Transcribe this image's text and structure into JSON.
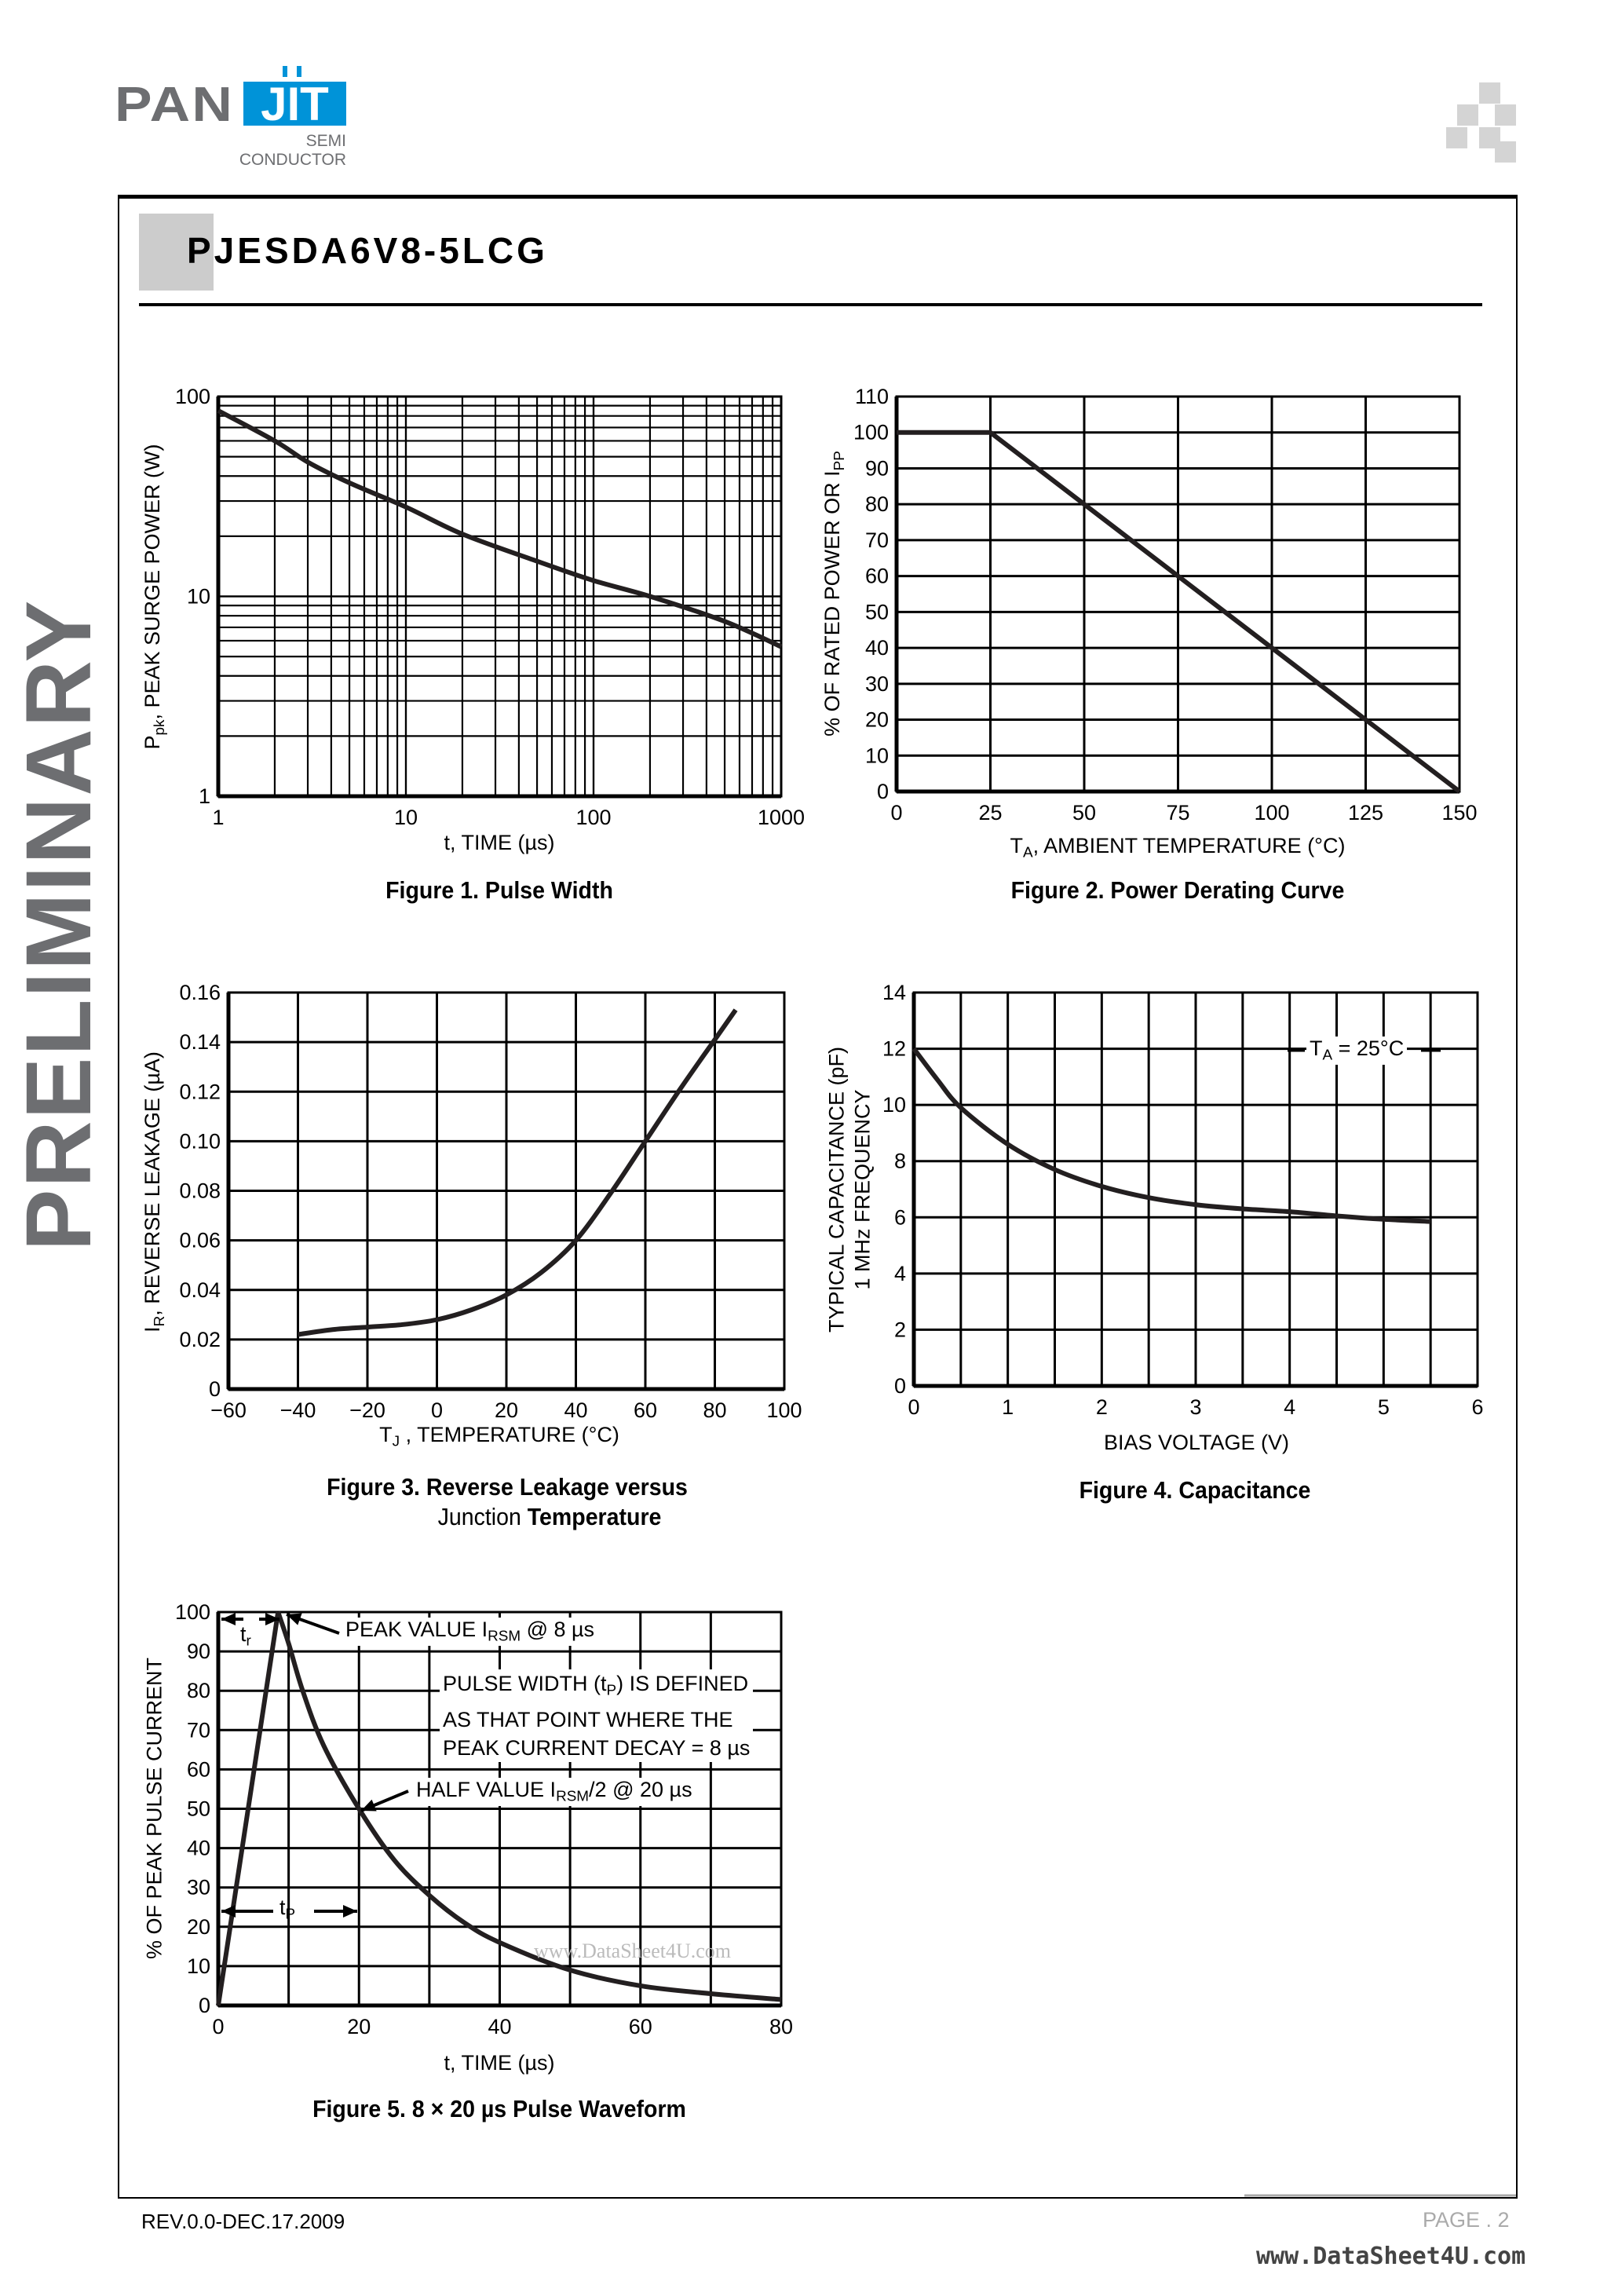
{
  "header": {
    "logo_text_gray": "PAN",
    "logo_text_blue": "JIT",
    "logo_sub_1": "SEMI",
    "logo_sub_2": "CONDUCTOR",
    "part_number": "PJESDA6V8-5LCG",
    "watermark": "PRELIMINARY"
  },
  "footer": {
    "revision": "REV.0.0-DEC.17.2009",
    "page": "PAGE . 2",
    "site_watermark": "www.DataSheet4U.com"
  },
  "colors": {
    "brand_blue": "#0093d8",
    "brand_gray": "#6d6e71",
    "title_block": "#cccccc",
    "ink": "#000000"
  },
  "chart_data": [
    {
      "type": "line",
      "title": "Figure 1. Pulse Width",
      "xlabel": "t, TIME (µs)",
      "ylabel": {
        "main": "P",
        "sub": "pk",
        "rest": ", PEAK SURGE POWER (W)"
      },
      "x_scale": "log",
      "y_scale": "log",
      "xlim": [
        1,
        1000
      ],
      "ylim": [
        1,
        100
      ],
      "x_ticks": [
        {
          "value": 1,
          "label": "1"
        },
        {
          "value": 10,
          "label": "10"
        },
        {
          "value": 100,
          "label": "100"
        },
        {
          "value": 1000,
          "label": "1000"
        }
      ],
      "y_ticks": [
        {
          "value": 1,
          "label": "1"
        },
        {
          "value": 10,
          "label": "10"
        },
        {
          "value": 100,
          "label": "100"
        }
      ],
      "grid": true,
      "series": [
        {
          "interpolation": "smooth",
          "x": [
            1,
            2,
            3,
            5,
            10,
            20,
            50,
            100,
            200,
            500,
            1000
          ],
          "y": [
            85,
            60,
            47,
            37,
            28,
            20.5,
            15,
            12,
            10,
            7.5,
            5.6
          ]
        }
      ]
    },
    {
      "type": "line",
      "title": "Figure 2. Power Derating Curve",
      "xlabel": {
        "main": "T",
        "sub": "A",
        "rest": ", AMBIENT TEMPERATURE (°C)"
      },
      "ylabel": {
        "main": "% OF RATED POWER OR I",
        "sub": "PP",
        "rest": ""
      },
      "x_scale": "linear",
      "y_scale": "linear",
      "xlim": [
        0,
        150
      ],
      "ylim": [
        0,
        110
      ],
      "x_grid_step": 25,
      "y_grid_step": 10,
      "x_ticks": [
        {
          "value": 0,
          "label": "0"
        },
        {
          "value": 25,
          "label": "25"
        },
        {
          "value": 50,
          "label": "50"
        },
        {
          "value": 75,
          "label": "75"
        },
        {
          "value": 100,
          "label": "100"
        },
        {
          "value": 125,
          "label": "125"
        },
        {
          "value": 150,
          "label": "150"
        }
      ],
      "y_ticks": [
        {
          "value": 0,
          "label": "0"
        },
        {
          "value": 10,
          "label": "10"
        },
        {
          "value": 20,
          "label": "20"
        },
        {
          "value": 30,
          "label": "30"
        },
        {
          "value": 40,
          "label": "40"
        },
        {
          "value": 50,
          "label": "50"
        },
        {
          "value": 60,
          "label": "60"
        },
        {
          "value": 70,
          "label": "70"
        },
        {
          "value": 80,
          "label": "80"
        },
        {
          "value": 90,
          "label": "90"
        },
        {
          "value": 100,
          "label": "100"
        },
        {
          "value": 110,
          "label": "110"
        }
      ],
      "grid": true,
      "series": [
        {
          "interpolation": "linear",
          "x": [
            0,
            25,
            150
          ],
          "y": [
            100,
            100,
            0
          ]
        }
      ]
    },
    {
      "type": "line",
      "title": "Figure 3. Reverse Leakage versus",
      "title_line2_light": "Junction",
      "title_line2_bold": "Temperature",
      "xlabel": {
        "main": "T",
        "sub": "J",
        "rest": " , TEMPERATURE (°C)"
      },
      "ylabel": {
        "main": "I",
        "sub": "R",
        "rest": ", REVERSE LEAKAGE (µA)"
      },
      "x_scale": "linear",
      "y_scale": "linear",
      "xlim": [
        -60,
        100
      ],
      "ylim": [
        0,
        0.16
      ],
      "x_grid_step": 20,
      "y_grid_step": 0.02,
      "x_ticks": [
        {
          "value": -60,
          "label": "−60"
        },
        {
          "value": -40,
          "label": "−40"
        },
        {
          "value": -20,
          "label": "−20"
        },
        {
          "value": 0,
          "label": "0"
        },
        {
          "value": 20,
          "label": "20"
        },
        {
          "value": 40,
          "label": "40"
        },
        {
          "value": 60,
          "label": "60"
        },
        {
          "value": 80,
          "label": "80"
        },
        {
          "value": 100,
          "label": "100"
        }
      ],
      "y_ticks": [
        {
          "value": 0,
          "label": "0"
        },
        {
          "value": 0.02,
          "label": "0.02"
        },
        {
          "value": 0.04,
          "label": "0.04"
        },
        {
          "value": 0.06,
          "label": "0.06"
        },
        {
          "value": 0.08,
          "label": "0.08"
        },
        {
          "value": 0.1,
          "label": "0.10"
        },
        {
          "value": 0.12,
          "label": "0.12"
        },
        {
          "value": 0.14,
          "label": "0.14"
        },
        {
          "value": 0.16,
          "label": "0.16"
        }
      ],
      "grid": true,
      "series": [
        {
          "interpolation": "smooth",
          "x": [
            -40,
            -30,
            -20,
            -10,
            0,
            10,
            20,
            30,
            40,
            50,
            60,
            70,
            80,
            86
          ],
          "y": [
            0.022,
            0.024,
            0.025,
            0.026,
            0.028,
            0.032,
            0.038,
            0.047,
            0.06,
            0.079,
            0.1,
            0.121,
            0.141,
            0.153
          ]
        }
      ]
    },
    {
      "type": "line",
      "title": "Figure 4. Capacitance",
      "xlabel": "BIAS VOLTAGE (V)",
      "ylabel": {
        "line1": "TYPICAL CAPACITANCE (pF)",
        "line2": "1 MHz FREQUENCY"
      },
      "annotation": {
        "main": "T",
        "sub": "A",
        "rest": " = 25°C"
      },
      "x_scale": "linear",
      "y_scale": "linear",
      "xlim": [
        0,
        6
      ],
      "ylim": [
        0,
        14
      ],
      "x_grid_step": 0.5,
      "y_grid_step": 2,
      "x_ticks": [
        {
          "value": 0,
          "label": "0"
        },
        {
          "value": 1,
          "label": "1"
        },
        {
          "value": 2,
          "label": "2"
        },
        {
          "value": 3,
          "label": "3"
        },
        {
          "value": 4,
          "label": "4"
        },
        {
          "value": 5,
          "label": "5"
        },
        {
          "value": 6,
          "label": "6"
        }
      ],
      "y_ticks": [
        {
          "value": 0,
          "label": "0"
        },
        {
          "value": 2,
          "label": "2"
        },
        {
          "value": 4,
          "label": "4"
        },
        {
          "value": 6,
          "label": "6"
        },
        {
          "value": 8,
          "label": "8"
        },
        {
          "value": 10,
          "label": "10"
        },
        {
          "value": 12,
          "label": "12"
        },
        {
          "value": 14,
          "label": "14"
        }
      ],
      "grid": true,
      "series": [
        {
          "interpolation": "smooth",
          "x": [
            0,
            0.25,
            0.5,
            1,
            1.5,
            2,
            2.5,
            3,
            3.5,
            4,
            4.5,
            5,
            5.5
          ],
          "y": [
            12,
            10.9,
            9.9,
            8.6,
            7.7,
            7.1,
            6.7,
            6.45,
            6.3,
            6.2,
            6.05,
            5.93,
            5.85
          ]
        }
      ]
    },
    {
      "type": "line",
      "title": "Figure 5. 8 × 20 µs Pulse Waveform",
      "xlabel": "t, TIME (µs)",
      "ylabel": "% OF PEAK PULSE CURRENT",
      "x_scale": "linear",
      "y_scale": "linear",
      "xlim": [
        0,
        80
      ],
      "ylim": [
        0,
        100
      ],
      "x_grid_step": 10,
      "y_grid_step": 10,
      "x_ticks": [
        {
          "value": 0,
          "label": "0"
        },
        {
          "value": 20,
          "label": "20"
        },
        {
          "value": 40,
          "label": "40"
        },
        {
          "value": 60,
          "label": "60"
        },
        {
          "value": 80,
          "label": "80"
        }
      ],
      "y_ticks": [
        {
          "value": 0,
          "label": "0"
        },
        {
          "value": 10,
          "label": "10"
        },
        {
          "value": 20,
          "label": "20"
        },
        {
          "value": 30,
          "label": "30"
        },
        {
          "value": 40,
          "label": "40"
        },
        {
          "value": 50,
          "label": "50"
        },
        {
          "value": 60,
          "label": "60"
        },
        {
          "value": 70,
          "label": "70"
        },
        {
          "value": 80,
          "label": "80"
        },
        {
          "value": 90,
          "label": "90"
        },
        {
          "value": 100,
          "label": "100"
        }
      ],
      "grid": true,
      "annotations": {
        "peak": {
          "main": "PEAK VALUE I",
          "sub": "RSM",
          "rest": " @ 8 µs"
        },
        "pulse_width": {
          "line1_main": "PULSE WIDTH (t",
          "line1_sub": "P",
          "line1_rest": ") IS DEFINED",
          "line2": "AS THAT POINT WHERE THE",
          "line3": "PEAK CURRENT DECAY = 8 µs"
        },
        "half": {
          "main": "HALF VALUE I",
          "sub": "RSM",
          "rest": "/2 @ 20 µs"
        },
        "tr": {
          "main": "t",
          "sub": "r"
        },
        "tp": {
          "main": "t",
          "sub": "P"
        }
      },
      "series": [
        {
          "interpolation": "linear",
          "x": [
            0,
            8.5
          ],
          "y": [
            0,
            100
          ]
        },
        {
          "interpolation": "smooth",
          "x": [
            8.5,
            10,
            12,
            15,
            20,
            25,
            30,
            35,
            40,
            50,
            60,
            70,
            80
          ],
          "y": [
            100,
            92,
            80,
            66,
            50,
            37,
            28,
            21,
            16,
            9,
            5,
            3,
            1.5
          ]
        }
      ]
    }
  ]
}
